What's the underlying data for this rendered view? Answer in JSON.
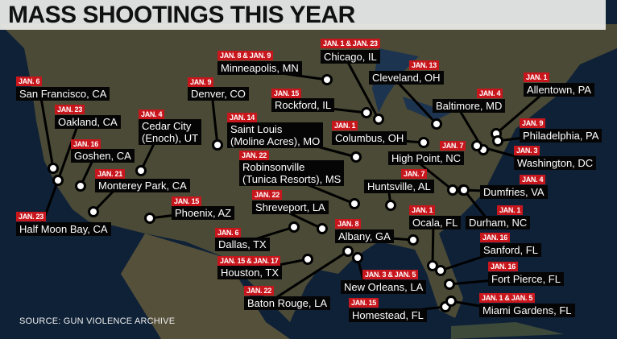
{
  "title": "MASS SHOOTINGS THIS YEAR",
  "source": "SOURCE: GUN VIOLENCE ARCHIVE",
  "colors": {
    "date_badge": "#c8161d",
    "city_label": "#050505",
    "ocean": "#0f2137",
    "land": "#4b4a36",
    "title_bar": "#e8e8e6"
  },
  "shootings": [
    {
      "date": "JAN. 6",
      "city": "San Francisco, CA"
    },
    {
      "date": "JAN. 23",
      "city": "Oakland, CA"
    },
    {
      "date": "JAN. 16",
      "city": "Goshen, CA"
    },
    {
      "date": "JAN. 4",
      "city": "Cedar City\n(Enoch), UT"
    },
    {
      "date": "JAN. 21",
      "city": "Monterey Park, CA"
    },
    {
      "date": "JAN. 23",
      "city": "Half Moon Bay, CA"
    },
    {
      "date": "JAN. 9",
      "city": "Denver, CO"
    },
    {
      "date": "JAN. 8 & JAN. 9",
      "city": "Minneapolis, MN"
    },
    {
      "date": "JAN. 15",
      "city": "Rockford, IL"
    },
    {
      "date": "JAN. 14",
      "city": "Saint Louis\n(Moline Acres), MO"
    },
    {
      "date": "JAN. 22",
      "city": "Robinsonville\n(Tunica Resorts), MS"
    },
    {
      "date": "JAN. 22",
      "city": "Shreveport, LA"
    },
    {
      "date": "JAN. 15",
      "city": "Phoenix, AZ"
    },
    {
      "date": "JAN. 6",
      "city": "Dallas, TX"
    },
    {
      "date": "JAN. 15 & JAN. 17",
      "city": "Houston, TX"
    },
    {
      "date": "JAN. 22",
      "city": "Baton Rouge, LA"
    },
    {
      "date": "JAN. 1 & JAN. 23",
      "city": "Chicago, IL"
    },
    {
      "date": "JAN. 13",
      "city": "Cleveland, OH"
    },
    {
      "date": "JAN. 1",
      "city": "Columbus, OH"
    },
    {
      "date": "JAN. 7",
      "city": "High Point, NC"
    },
    {
      "date": "JAN. 7",
      "city": "Huntsville, AL"
    },
    {
      "date": "JAN. 4",
      "city": "Baltimore, MD"
    },
    {
      "date": "JAN. 1",
      "city": "Allentown, PA"
    },
    {
      "date": "JAN. 9",
      "city": "Philadelphia, PA"
    },
    {
      "date": "JAN. 3",
      "city": "Washington, DC"
    },
    {
      "date": "JAN. 4",
      "city": "Dumfries, VA"
    },
    {
      "date": "JAN. 1",
      "city": "Ocala, FL"
    },
    {
      "date": "JAN. 1",
      "city": "Durham, NC"
    },
    {
      "date": "JAN. 8",
      "city": "Albany, GA"
    },
    {
      "date": "JAN. 16",
      "city": "Sanford, FL"
    },
    {
      "date": "JAN. 3 & JAN. 5",
      "city": "New Orleans, LA"
    },
    {
      "date": "JAN. 16",
      "city": "Fort Pierce, FL"
    },
    {
      "date": "JAN. 15",
      "city": "Homestead, FL"
    },
    {
      "date": "JAN. 1 & JAN. 5",
      "city": "Miami Gardens, FL"
    }
  ]
}
